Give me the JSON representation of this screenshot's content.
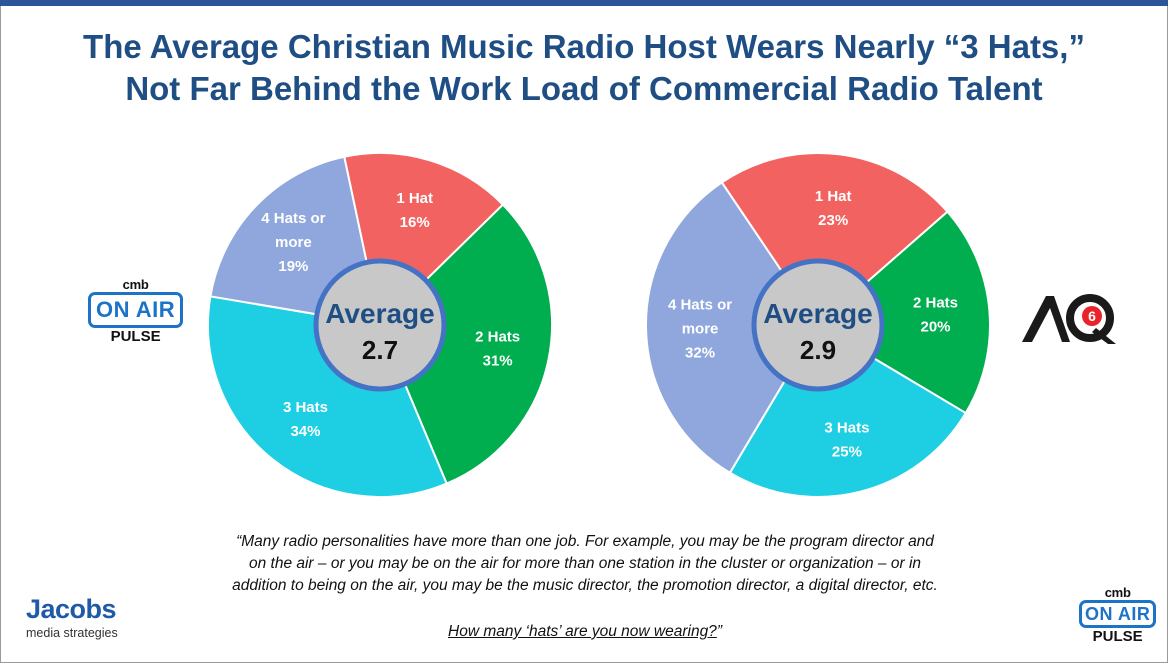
{
  "title_lines": [
    "The Average Christian Music Radio Host Wears Nearly “3 Hats,”",
    "Not Far Behind the Work Load of Commercial Radio Talent"
  ],
  "chart_data": [
    {
      "type": "pie",
      "style": "donut",
      "brand": "cmb On Air Pulse",
      "center_label": "Average",
      "center_value": "2.7",
      "slices": [
        {
          "label": "1 Hat",
          "value": 16,
          "text": "16%",
          "color": "#f26260"
        },
        {
          "label": "2 Hats",
          "value": 31,
          "text": "31%",
          "color": "#00ae4f"
        },
        {
          "label": "3 Hats",
          "value": 34,
          "text": "34%",
          "color": "#1ecfe3"
        },
        {
          "label": "4 Hats or more",
          "value": 19,
          "text": "19%",
          "color": "#8fa7dd"
        }
      ]
    },
    {
      "type": "pie",
      "style": "donut",
      "brand": "AQ6",
      "center_label": "Average",
      "center_value": "2.9",
      "slices": [
        {
          "label": "1 Hat",
          "value": 23,
          "text": "23%",
          "color": "#f26260"
        },
        {
          "label": "2 Hats",
          "value": 20,
          "text": "20%",
          "color": "#00ae4f"
        },
        {
          "label": "3 Hats",
          "value": 25,
          "text": "25%",
          "color": "#1ecfe3"
        },
        {
          "label": "4 Hats or more",
          "value": 32,
          "text": "32%",
          "color": "#8fa7dd"
        }
      ]
    }
  ],
  "left_brand": {
    "top": "cmb",
    "box": "ON AIR",
    "bottom": "PULSE"
  },
  "bottom_right_brand": {
    "top": "cmb",
    "box": "ON AIR",
    "bottom": "PULSE"
  },
  "right_brand": {
    "text": "AQ",
    "numeral": "6"
  },
  "quote_lines": [
    "“Many radio personalities have more than one job. For example, you may be the program director and",
    "on the air – or you may be on the air for more than one station in the cluster or organization – or in",
    "addition to being on the air, you may be the music director, the promotion director, a digital director, etc."
  ],
  "question": {
    "text": "How many ‘hats’ are you now wearing?",
    "closing": "”"
  },
  "footer_logo": {
    "name": "Jacobs",
    "tagline": "media strategies"
  },
  "colors": {
    "title": "#1f4e84",
    "topbar": "#2a5597",
    "center_fill": "#c8c8c8",
    "center_ring": "#4472c4",
    "brand_blue": "#1d73c6",
    "aq_red": "#e8232a"
  }
}
